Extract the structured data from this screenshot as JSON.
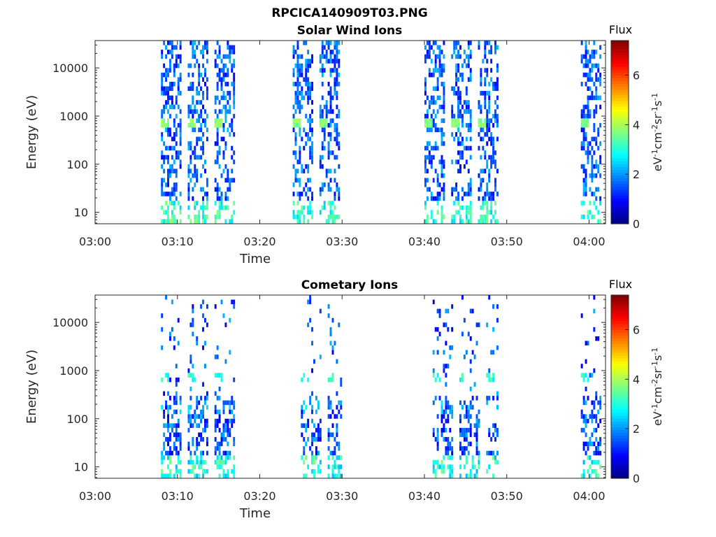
{
  "figure": {
    "filename": "RPCICA140909T03.PNG",
    "colormap": "jet"
  },
  "chart_data": [
    {
      "type": "heatmap",
      "title": "Solar Wind Ions",
      "xlabel": "Time",
      "ylabel": "Energy (eV)",
      "x_unit": "HH:MM",
      "x_range": [
        "03:00",
        "04:02"
      ],
      "x_ticks": [
        "03:00",
        "03:10",
        "03:20",
        "03:30",
        "03:40",
        "03:50",
        "04:00"
      ],
      "y_scale": "log",
      "y_range": [
        5.8,
        37000
      ],
      "y_ticks": [
        10,
        100,
        1000,
        10000
      ],
      "y_tick_labels": [
        "10",
        "100",
        "1000",
        "10000"
      ],
      "colorbar": {
        "label": "Flux",
        "unit_label": "eV-1cm-2sr-1s-1",
        "range": [
          0,
          7.4
        ],
        "ticks": [
          0,
          2,
          4,
          6
        ],
        "tick_labels": [
          "0",
          "2",
          "4",
          "6"
        ]
      },
      "bursts": [
        {
          "start": "03:08",
          "end": "03:17",
          "center_energy": 640,
          "peak_flux": 4.0
        },
        {
          "start": "03:24",
          "end": "03:30",
          "center_energy": 640,
          "peak_flux": 4.0
        },
        {
          "start": "03:40",
          "end": "03:49",
          "center_energy": 640,
          "peak_flux": 4.0
        },
        {
          "start": "03:59",
          "end": "04:02",
          "center_energy": 640,
          "peak_flux": 4.0
        }
      ],
      "grid": false
    },
    {
      "type": "heatmap",
      "title": "Cometary Ions",
      "xlabel": "Time",
      "ylabel": "Energy (eV)",
      "x_unit": "HH:MM",
      "x_range": [
        "03:00",
        "04:02"
      ],
      "x_ticks": [
        "03:00",
        "03:10",
        "03:20",
        "03:30",
        "03:40",
        "03:50",
        "04:00"
      ],
      "y_scale": "log",
      "y_range": [
        5.8,
        37000
      ],
      "y_ticks": [
        10,
        100,
        1000,
        10000
      ],
      "y_tick_labels": [
        "10",
        "100",
        "1000",
        "10000"
      ],
      "colorbar": {
        "label": "Flux",
        "unit_label": "eV-1cm-2sr-1s-1",
        "range": [
          0,
          7.4
        ],
        "ticks": [
          0,
          2,
          4,
          6
        ],
        "tick_labels": [
          "0",
          "2",
          "4",
          "6"
        ]
      },
      "bursts": [
        {
          "start": "03:08",
          "end": "03:17",
          "center_energy": 130,
          "peak_flux": 3.0
        },
        {
          "start": "03:25",
          "end": "03:30",
          "center_energy": 130,
          "peak_flux": 3.0
        },
        {
          "start": "03:41",
          "end": "03:49",
          "center_energy": 130,
          "peak_flux": 3.0
        },
        {
          "start": "03:59",
          "end": "04:02",
          "center_energy": 130,
          "peak_flux": 3.0
        }
      ],
      "grid": false
    }
  ]
}
